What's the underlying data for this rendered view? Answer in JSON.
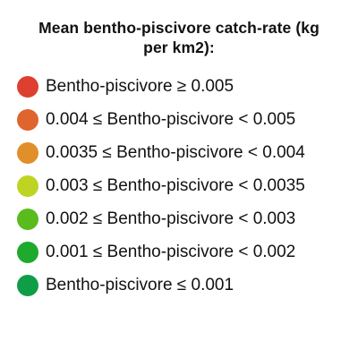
{
  "legend": {
    "title_line1": "Mean bentho-piscivore catch-rate (kg",
    "title_line2": "per km2):",
    "items": [
      {
        "label": "Bentho-piscivore ≥ 0.005",
        "color": "#dd3f30"
      },
      {
        "label": "0.004 ≤ Bentho-piscivore < 0.005",
        "color": "#e0642e"
      },
      {
        "label": "0.0035 ≤ Bentho-piscivore < 0.004",
        "color": "#e08f2a"
      },
      {
        "label": "0.003 ≤ Bentho-piscivore < 0.0035",
        "color": "#bfd322"
      },
      {
        "label": "0.002 ≤ Bentho-piscivore < 0.003",
        "color": "#59bb1c"
      },
      {
        "label": "0.001 ≤ Bentho-piscivore < 0.002",
        "color": "#1eaa2c"
      },
      {
        "label": "Bentho-piscivore ≤ 0.001",
        "color": "#0f9d48"
      }
    ]
  }
}
